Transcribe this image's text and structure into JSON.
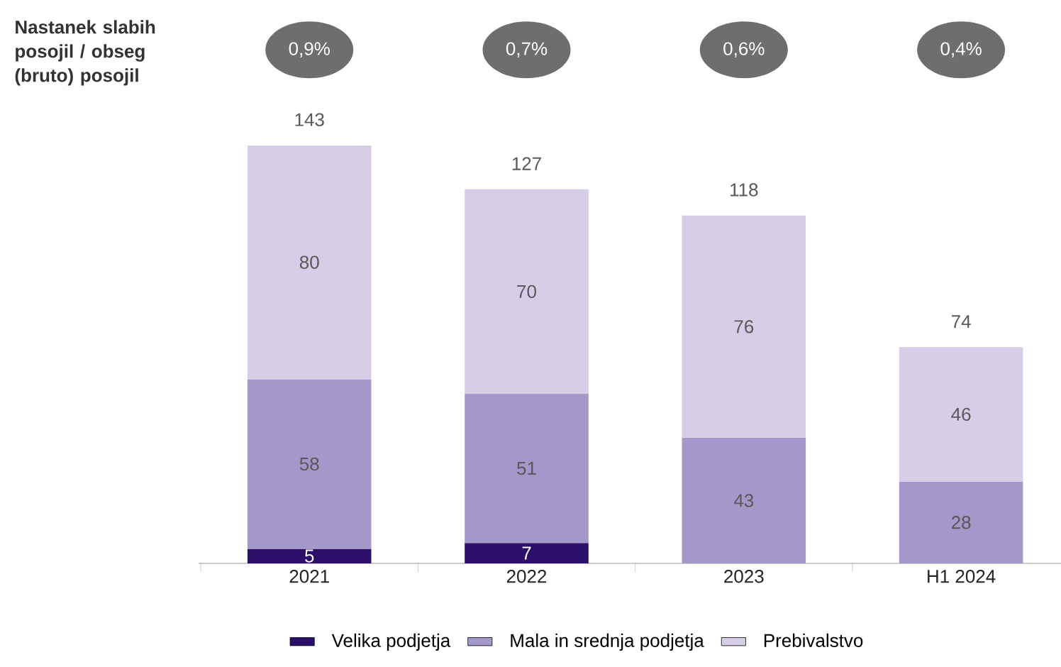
{
  "chart_data": {
    "type": "bar",
    "stacked": true,
    "categories": [
      "2021",
      "2022",
      "2023",
      "H1 2024"
    ],
    "series": [
      {
        "name": "Velika podjetja",
        "color": "#2b0f6b",
        "values": [
          5,
          7,
          null,
          null
        ]
      },
      {
        "name": "Mala in srednja podjetja",
        "color": "#a497c9",
        "values": [
          58,
          51,
          43,
          28
        ]
      },
      {
        "name": "Prebivalstvo",
        "color": "#d6cde6",
        "values": [
          80,
          70,
          76,
          46
        ]
      }
    ],
    "data_labels": true,
    "totals": [
      "143",
      "127",
      "118",
      "74"
    ],
    "legend": "bottom",
    "annotations": [
      "Nastanek slabih posojil / obseg (bruto) posojil",
      "0,9%",
      "0,7%",
      "0,6%",
      "0,4%"
    ]
  }
}
